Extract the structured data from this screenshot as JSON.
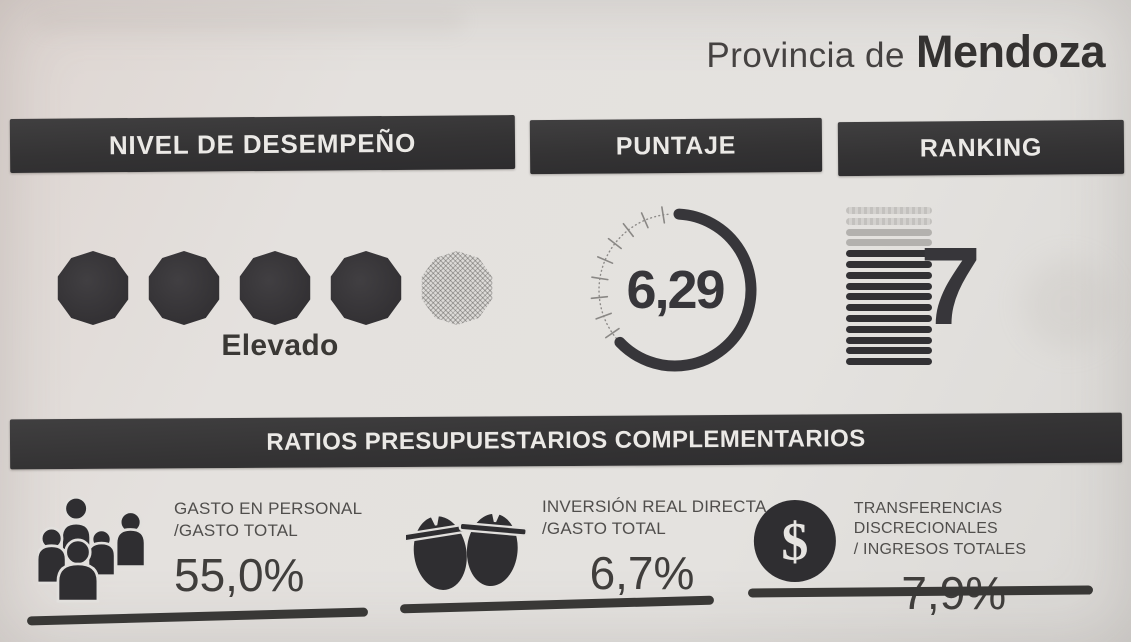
{
  "page": {
    "title_prefix": "Provincia de",
    "title_name": "Mendoza"
  },
  "sections": {
    "performance": {
      "header": "NIVEL DE DESEMPEÑO",
      "dots_total": 5,
      "dots_filled": 4,
      "level_label": "Elevado"
    },
    "score": {
      "header": "PUNTAJE",
      "value_display": "6,29",
      "value": 6.29,
      "max": 10
    },
    "ranking": {
      "header": "RANKING",
      "value_display": "7",
      "bars_total": 15,
      "bars_faint": 2,
      "bars_light": 4
    }
  },
  "ratios": {
    "header": "RATIOS PRESUPUESTARIOS COMPLEMENTARIOS",
    "items": [
      {
        "icon": "people-group-icon",
        "label_line1": "GASTO EN PERSONAL",
        "label_line2": "/GASTO TOTAL",
        "value": "55,0%"
      },
      {
        "icon": "hard-hats-icon",
        "label_line1": "INVERSIÓN REAL DIRECTA",
        "label_line2": "/GASTO TOTAL",
        "value": "6,7%"
      },
      {
        "icon": "dollar-circle-icon",
        "label_line1": "TRANSFERENCIAS DISCRECIONALES",
        "label_line2": "/ INGRESOS TOTALES",
        "value": "7,9%",
        "dollar_glyph": "$"
      }
    ]
  },
  "colors": {
    "ink": "#343336",
    "paper": "#e4e2df",
    "header_bg": "#343334",
    "header_text": "#ebe9e6",
    "light_bar": "#b3b1ae"
  }
}
